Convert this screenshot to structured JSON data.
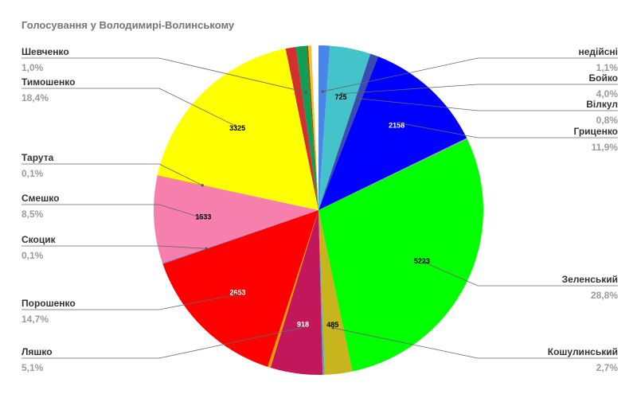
{
  "chart_data": {
    "type": "pie",
    "title": "Голосування у Володимирі-Волинському",
    "slices": [
      {
        "name": "недійсні",
        "pct_label": "1,1%",
        "fraction": 0.011,
        "color": "#4a86e8",
        "value_label": ""
      },
      {
        "name": "Бойко",
        "pct_label": "4,0%",
        "fraction": 0.04,
        "color": "#45c3cb",
        "value_label": "725"
      },
      {
        "name": "Вілкул",
        "pct_label": "0,8%",
        "fraction": 0.008,
        "color": "#3c4bb0",
        "value_label": ""
      },
      {
        "name": "Гриценко",
        "pct_label": "11,9%",
        "fraction": 0.119,
        "color": "#0000ff",
        "value_label": "2158"
      },
      {
        "name": "",
        "pct_label": "",
        "fraction": 0.001,
        "color": "#9e9e9e",
        "value_label": ""
      },
      {
        "name": "Зеленський",
        "pct_label": "28,8%",
        "fraction": 0.288,
        "color": "#00ff00",
        "value_label": "5223"
      },
      {
        "name": "Кошулинський",
        "pct_label": "2,7%",
        "fraction": 0.027,
        "color": "#c8b51e",
        "value_label": "485"
      },
      {
        "name": "",
        "pct_label": "",
        "fraction": 0.002,
        "color": "#4ea8c8",
        "value_label": ""
      },
      {
        "name": "Ляшко",
        "pct_label": "5,1%",
        "fraction": 0.051,
        "color": "#c2185b",
        "value_label": "918"
      },
      {
        "name": "",
        "pct_label": "",
        "fraction": 0.003,
        "color": "#ff9900",
        "value_label": ""
      },
      {
        "name": "Порошенко",
        "pct_label": "14,7%",
        "fraction": 0.147,
        "color": "#ff0000",
        "value_label": "2653"
      },
      {
        "name": "Скоцик",
        "pct_label": "0,1%",
        "fraction": 0.001,
        "color": "#8e7cc3",
        "value_label": ""
      },
      {
        "name": "Смешко",
        "pct_label": "8,5%",
        "fraction": 0.085,
        "color": "#f77fae",
        "value_label": "1533"
      },
      {
        "name": "Тарута",
        "pct_label": "0,1%",
        "fraction": 0.001,
        "color": "#e69138",
        "value_label": ""
      },
      {
        "name": "Тимошенко",
        "pct_label": "18,4%",
        "fraction": 0.184,
        "color": "#ffff00",
        "value_label": "3325"
      },
      {
        "name": "",
        "pct_label": "",
        "fraction": 0.01,
        "color": "#d32f2f",
        "value_label": ""
      },
      {
        "name": "Шевченко",
        "pct_label": "1,0%",
        "fraction": 0.01,
        "color": "#0f9d58",
        "value_label": ""
      },
      {
        "name": "",
        "pct_label": "",
        "fraction": 0.002,
        "color": "#7f6000",
        "value_label": ""
      },
      {
        "name": "",
        "pct_label": "",
        "fraction": 0.003,
        "color": "#f1c232",
        "value_label": ""
      }
    ],
    "legend": "labels around pie"
  }
}
